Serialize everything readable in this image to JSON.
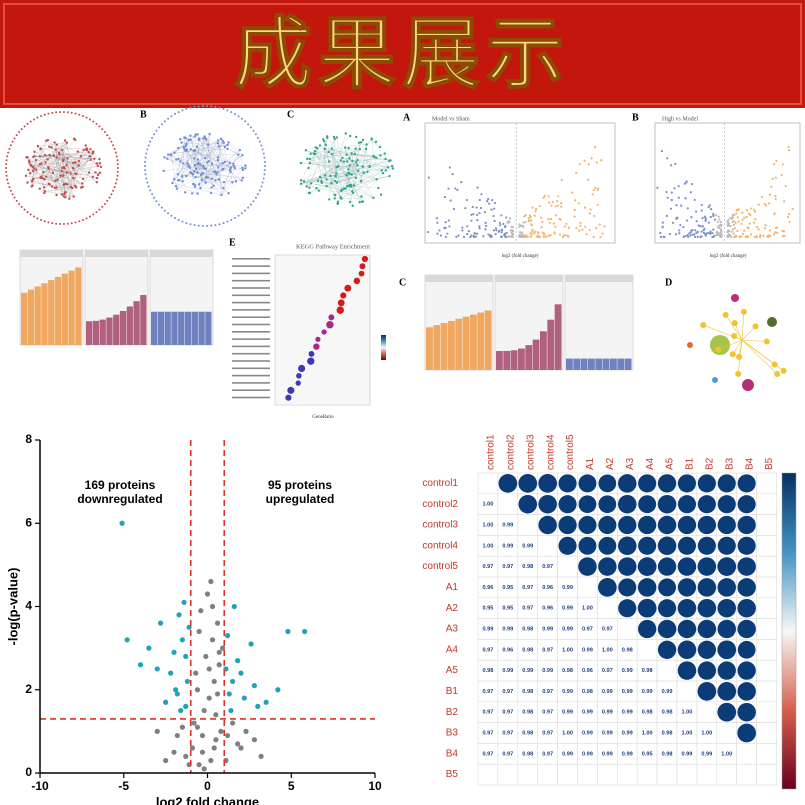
{
  "header": {
    "title": "成果展示"
  },
  "thumbnails": {
    "panel_labels": [
      "B",
      "C",
      "A",
      "B",
      "E",
      "C",
      "D"
    ],
    "titles": [
      "Model vs Sham",
      "High vs Model",
      "KEGG Pathway Enrichment"
    ],
    "axis_labels": [
      "log2 (fold change)",
      "log2 (fold change)",
      "GeneRatio"
    ]
  },
  "chart_data": [
    {
      "type": "scatter",
      "xlabel": "log2 fold change",
      "ylabel": "-log(p-value)",
      "annotations": [
        "169 proteins",
        "downregulated",
        "95 proteins",
        "upregulated"
      ],
      "xlim": [
        -10,
        10
      ],
      "xticks": [
        -10,
        -5,
        0,
        5,
        10
      ],
      "ylim": [
        0,
        8
      ],
      "yticks": [
        0,
        2,
        4,
        6,
        8
      ],
      "thresholds": {
        "x": [
          -1,
          1
        ],
        "y": 1.3,
        "color": "#e0312a"
      },
      "series": [
        {
          "color": "#7f7f7f",
          "x": [
            -0.5,
            -0.3,
            0.2,
            0.5,
            0.8,
            -0.8,
            -0.2,
            0.1,
            0.4,
            0.7,
            -0.6,
            -0.1,
            0.3,
            0.6,
            0.9,
            -0.9,
            -0.4,
            0.0,
            0.5,
            0.2,
            -0.7,
            1.2,
            -1.5,
            1.8,
            -2.0,
            2.3,
            -1.3,
            1.5,
            -2.5,
            2.8,
            -0.3,
            0.4,
            0.6,
            -0.5,
            0.1,
            -1.1,
            1.1,
            -1.8,
            2.0,
            -3.0,
            3.2,
            0.3,
            -0.2,
            0.7,
            -0.6
          ],
          "values": [
            0.2,
            0.5,
            0.3,
            0.8,
            1.0,
            1.2,
            1.5,
            1.8,
            2.2,
            2.6,
            2.0,
            2.8,
            3.2,
            3.6,
            3.0,
            0.6,
            3.9,
            4.3,
            1.4,
            4.6,
            2.4,
            0.9,
            1.1,
            0.7,
            0.5,
            1.0,
            0.4,
            1.2,
            0.3,
            0.8,
            0.9,
            0.6,
            1.9,
            3.4,
            2.5,
            0.2,
            0.3,
            0.9,
            0.6,
            1.0,
            0.4,
            4.0,
            0.1,
            2.9,
            1.1
          ]
        },
        {
          "color": "#1fa3b5",
          "x": [
            -5.1,
            -4.8,
            -3.5,
            -2.8,
            -2.2,
            -1.8,
            -1.5,
            -1.3,
            -1.2,
            -1.6,
            -2.0,
            -1.4,
            -3.0,
            -2.5,
            -1.1,
            -1.9,
            -1.3,
            -4.0,
            1.2,
            1.5,
            1.8,
            2.2,
            2.6,
            3.0,
            4.8,
            5.8,
            1.3,
            1.6,
            2.0,
            1.1,
            4.2,
            1.4,
            2.8,
            -1.7,
            3.5
          ],
          "values": [
            6.0,
            3.2,
            3.0,
            3.6,
            2.4,
            1.9,
            3.2,
            2.8,
            2.2,
            1.5,
            2.9,
            4.1,
            2.5,
            1.7,
            3.5,
            2.0,
            1.6,
            2.6,
            3.3,
            2.2,
            2.7,
            1.8,
            3.1,
            1.6,
            3.4,
            3.4,
            1.9,
            4.0,
            2.4,
            2.5,
            2.0,
            1.5,
            2.1,
            3.8,
            1.7
          ]
        }
      ]
    },
    {
      "type": "correlation",
      "categories": [
        "control1",
        "control2",
        "control3",
        "control4",
        "control5",
        "A1",
        "A2",
        "A3",
        "A4",
        "A5",
        "B1",
        "B2",
        "B3",
        "B4",
        "B5"
      ],
      "color": "#0b3c78",
      "label_color": "#c0392b",
      "values": [
        [],
        [
          1.0
        ],
        [
          1.0,
          0.99
        ],
        [
          1.0,
          0.99,
          0.99
        ],
        [
          0.97,
          0.97,
          0.98,
          0.97
        ],
        [
          0.96,
          0.95,
          0.97,
          0.96,
          0.99
        ],
        [
          0.95,
          0.95,
          0.97,
          0.96,
          0.99,
          1.0
        ],
        [
          0.99,
          0.99,
          0.98,
          0.99,
          0.99,
          0.97,
          0.97
        ],
        [
          0.97,
          0.96,
          0.98,
          0.97,
          1.0,
          0.99,
          1.0,
          0.98
        ],
        [
          0.98,
          0.99,
          0.99,
          0.99,
          0.98,
          0.96,
          0.97,
          0.99,
          0.98
        ],
        [
          0.97,
          0.97,
          0.98,
          0.97,
          0.99,
          0.98,
          0.99,
          0.99,
          0.99,
          0.99
        ],
        [
          0.97,
          0.97,
          0.98,
          0.97,
          0.99,
          0.99,
          0.99,
          0.99,
          0.98,
          0.98,
          1.0
        ],
        [
          0.97,
          0.97,
          0.98,
          0.97,
          1.0,
          0.99,
          0.99,
          0.99,
          1.0,
          0.98,
          1.0,
          1.0
        ],
        [
          0.97,
          0.97,
          0.98,
          0.97,
          0.99,
          0.99,
          0.99,
          0.99,
          0.95,
          0.98,
          0.99,
          0.99,
          1.0
        ],
        []
      ],
      "value_labels": [
        [],
        [
          "1.00"
        ],
        [
          "1.00",
          "0.99"
        ],
        [
          "1.00",
          "0.99",
          "0.99"
        ],
        [
          "0.97",
          "0.97",
          "0.98",
          "0.97"
        ],
        [
          "0.96",
          "0.95",
          "0.97",
          "0.96",
          "0.99"
        ],
        [
          "0.95",
          "0.95",
          "0.97",
          "0.96",
          "0.99",
          "1.00"
        ],
        [
          "0.99",
          "0.99",
          "0.98",
          "0.99",
          "0.99",
          "0.97",
          "0.97"
        ],
        [
          "0.97",
          "0.96",
          "0.98",
          "0.97",
          "1.00",
          "0.99",
          "1.00",
          "0.98"
        ],
        [
          "0.98",
          "0.99",
          "0.99",
          "0.99",
          "0.98",
          "0.96",
          "0.97",
          "0.99",
          "0.98"
        ],
        [
          "0.97",
          "0.97",
          "0.98",
          "0.97",
          "0.99",
          "0.98",
          "0.99",
          "0.99",
          "0.99",
          "0.99"
        ],
        [
          "0.97",
          "0.97",
          "0.98",
          "0.97",
          "0.99",
          "0.99",
          "0.99",
          "0.99",
          "0.98",
          "0.98",
          "1.00"
        ],
        [
          "0.97",
          "0.97",
          "0.98",
          "0.97",
          "1.00",
          "0.99",
          "0.99",
          "0.99",
          "1.00",
          "0.98",
          "1.00",
          "1.00"
        ],
        [
          "0.97",
          "0.97",
          "0.98",
          "0.97",
          "0.99",
          "0.99",
          "0.99",
          "0.99",
          "0.95",
          "0.98",
          "0.99",
          "0.99",
          "1.00"
        ],
        []
      ]
    }
  ]
}
